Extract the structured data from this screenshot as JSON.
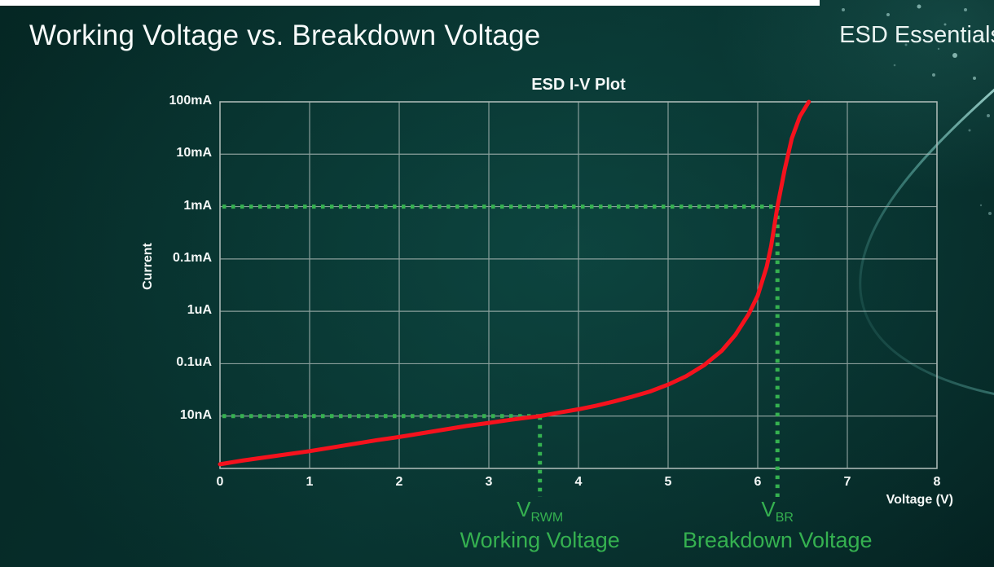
{
  "page": {
    "title": "Working Voltage vs. Breakdown Voltage",
    "brand": "ESD Essentials"
  },
  "colors": {
    "text": "#f4f8f7",
    "annotation_green": "#35b150",
    "curve_red": "#f5121d",
    "grid": "#a9b7b4",
    "background_teal": "#07302d"
  },
  "chart_data": {
    "type": "line",
    "title": "ESD I-V Plot",
    "xlabel": "Voltage (V)",
    "ylabel": "Current",
    "xlim": [
      0,
      8
    ],
    "x_ticks": [
      0,
      1,
      2,
      3,
      4,
      5,
      6,
      7,
      8
    ],
    "y_scale": "log",
    "y_tick_labels_top_to_bottom": [
      "100mA",
      "10mA",
      "1mA",
      "0.1mA",
      "1uA",
      "0.1uA",
      "10nA"
    ],
    "grid": true,
    "series": [
      {
        "name": "ESD I-V curve",
        "color": "#f5121d",
        "points_format": "[voltage_V, grid_decades_above_bottom_axis]",
        "points": [
          [
            0,
            0.08
          ],
          [
            0.25,
            0.15
          ],
          [
            0.5,
            0.21
          ],
          [
            0.75,
            0.27
          ],
          [
            1,
            0.33
          ],
          [
            1.25,
            0.4
          ],
          [
            1.5,
            0.47
          ],
          [
            1.75,
            0.54
          ],
          [
            2,
            0.6
          ],
          [
            2.25,
            0.67
          ],
          [
            2.5,
            0.74
          ],
          [
            2.75,
            0.81
          ],
          [
            3,
            0.87
          ],
          [
            3.25,
            0.93
          ],
          [
            3.57,
            1
          ],
          [
            3.8,
            1.07
          ],
          [
            4,
            1.13
          ],
          [
            4.2,
            1.2
          ],
          [
            4.4,
            1.28
          ],
          [
            4.6,
            1.37
          ],
          [
            4.8,
            1.47
          ],
          [
            5,
            1.6
          ],
          [
            5.2,
            1.76
          ],
          [
            5.4,
            1.97
          ],
          [
            5.6,
            2.25
          ],
          [
            5.75,
            2.55
          ],
          [
            5.9,
            2.95
          ],
          [
            6,
            3.3
          ],
          [
            6.1,
            3.85
          ],
          [
            6.15,
            4.25
          ],
          [
            6.22,
            5
          ],
          [
            6.3,
            5.7
          ],
          [
            6.38,
            6.3
          ],
          [
            6.47,
            6.72
          ],
          [
            6.57,
            7
          ]
        ]
      }
    ],
    "annotations": [
      {
        "id": "vrwm",
        "symbol": "V",
        "subscript": "RWM",
        "caption": "Working Voltage",
        "voltage": 3.57,
        "current_level": "10nA"
      },
      {
        "id": "vbr",
        "symbol": "V",
        "subscript": "BR",
        "caption": "Breakdown Voltage",
        "voltage": 6.22,
        "current_level": "1mA"
      }
    ]
  }
}
